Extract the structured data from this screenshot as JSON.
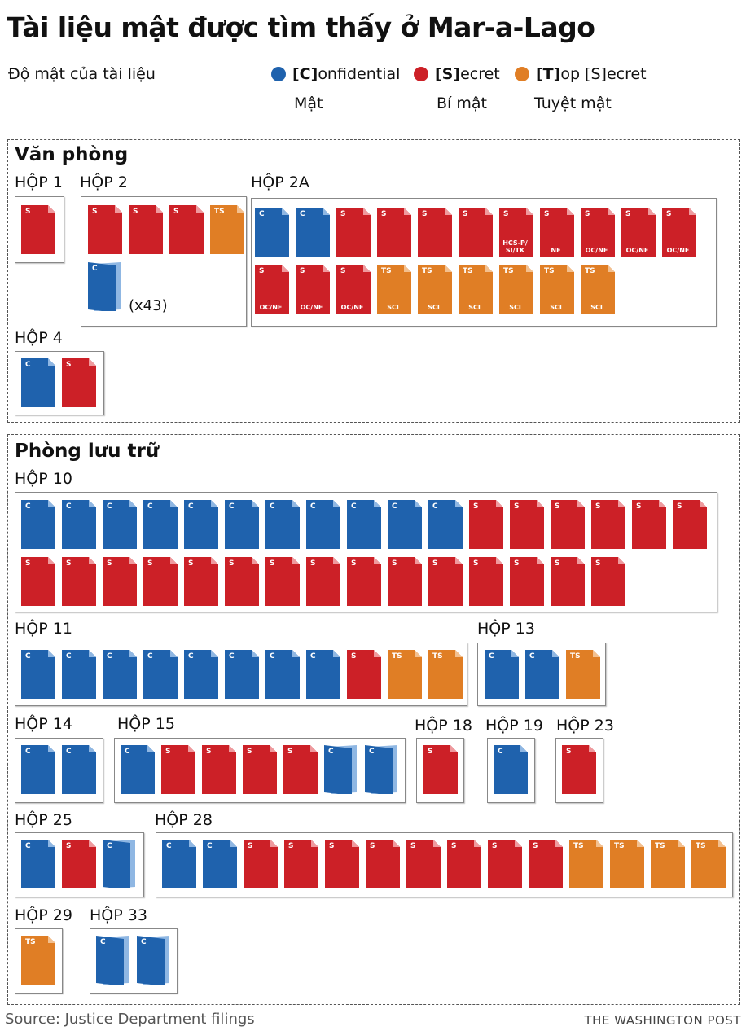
{
  "title": "Tài liệu mật được tìm thấy ở Mar-a-Lago",
  "legend": {
    "label": "Độ mật của tài liệu",
    "items": [
      {
        "key": "C",
        "code": "[C]",
        "rest": "onfidential",
        "sub": "Mật",
        "color": "#1f62ad"
      },
      {
        "key": "S",
        "code": "[S]",
        "rest": "ecret",
        "sub": "Bí mật",
        "color": "#cc2027"
      },
      {
        "key": "TS",
        "code": "[T]",
        "rest": "op [S]ecret",
        "sub": "Tuyệt mật",
        "color": "#e07e25"
      }
    ]
  },
  "colors": {
    "C": "#1f62ad",
    "S": "#cc2027",
    "TS": "#e07e25",
    "C_fold": "#8fb7e3",
    "S_fold": "#ef9a9e",
    "TS_fold": "#f3c08f"
  },
  "sections": [
    {
      "title": "Văn phòng"
    },
    {
      "title": "Phòng lưu trữ"
    }
  ],
  "chart_data": {
    "type": "table",
    "title": "Tài liệu mật được tìm thấy ở Mar-a-Lago",
    "categories": [
      "C",
      "S",
      "TS"
    ],
    "boxes": [
      {
        "section": "Văn phòng",
        "label": "HỘP 1",
        "docs": [
          {
            "c": "S"
          }
        ]
      },
      {
        "section": "Văn phòng",
        "label": "HỘP 2",
        "docs": [
          {
            "c": "S"
          },
          {
            "c": "S"
          },
          {
            "c": "S"
          },
          {
            "c": "TS"
          },
          {
            "c": "C",
            "folder": true,
            "count": "(x43)"
          }
        ]
      },
      {
        "section": "Văn phòng",
        "label": "HỘP 2A",
        "docs": [
          {
            "c": "C"
          },
          {
            "c": "C"
          },
          {
            "c": "S"
          },
          {
            "c": "S"
          },
          {
            "c": "S"
          },
          {
            "c": "S"
          },
          {
            "c": "S",
            "sub": "HCS-P/\nSI/TK"
          },
          {
            "c": "S",
            "sub": "NF"
          },
          {
            "c": "S",
            "sub": "OC/NF"
          },
          {
            "c": "S",
            "sub": "OC/NF"
          },
          {
            "c": "S",
            "sub": "OC/NF"
          },
          {
            "c": "S",
            "sub": "OC/NF"
          },
          {
            "c": "S",
            "sub": "OC/NF"
          },
          {
            "c": "S",
            "sub": "OC/NF"
          },
          {
            "c": "TS",
            "sub": "SCI"
          },
          {
            "c": "TS",
            "sub": "SCI"
          },
          {
            "c": "TS",
            "sub": "SCI"
          },
          {
            "c": "TS",
            "sub": "SCI"
          },
          {
            "c": "TS",
            "sub": "SCI"
          },
          {
            "c": "TS",
            "sub": "SCI"
          }
        ]
      },
      {
        "section": "Văn phòng",
        "label": "HỘP 4",
        "docs": [
          {
            "c": "C"
          },
          {
            "c": "S"
          }
        ]
      },
      {
        "section": "Phòng lưu trữ",
        "label": "HỘP 10",
        "docs": [
          {
            "c": "C"
          },
          {
            "c": "C"
          },
          {
            "c": "C"
          },
          {
            "c": "C"
          },
          {
            "c": "C"
          },
          {
            "c": "C"
          },
          {
            "c": "C"
          },
          {
            "c": "C"
          },
          {
            "c": "C"
          },
          {
            "c": "C"
          },
          {
            "c": "C"
          },
          {
            "c": "S"
          },
          {
            "c": "S"
          },
          {
            "c": "S"
          },
          {
            "c": "S"
          },
          {
            "c": "S"
          },
          {
            "c": "S"
          },
          {
            "c": "S"
          },
          {
            "c": "S"
          },
          {
            "c": "S"
          },
          {
            "c": "S"
          },
          {
            "c": "S"
          },
          {
            "c": "S"
          },
          {
            "c": "S"
          },
          {
            "c": "S"
          },
          {
            "c": "S"
          },
          {
            "c": "S"
          },
          {
            "c": "S"
          },
          {
            "c": "S"
          },
          {
            "c": "S"
          },
          {
            "c": "S"
          },
          {
            "c": "S"
          }
        ]
      },
      {
        "section": "Phòng lưu trữ",
        "label": "HỘP 11",
        "docs": [
          {
            "c": "C"
          },
          {
            "c": "C"
          },
          {
            "c": "C"
          },
          {
            "c": "C"
          },
          {
            "c": "C"
          },
          {
            "c": "C"
          },
          {
            "c": "C"
          },
          {
            "c": "C"
          },
          {
            "c": "S"
          },
          {
            "c": "TS"
          },
          {
            "c": "TS"
          }
        ]
      },
      {
        "section": "Phòng lưu trữ",
        "label": "HỘP 13",
        "docs": [
          {
            "c": "C"
          },
          {
            "c": "C"
          },
          {
            "c": "TS"
          }
        ]
      },
      {
        "section": "Phòng lưu trữ",
        "label": "HỘP 14",
        "docs": [
          {
            "c": "C"
          },
          {
            "c": "C"
          }
        ]
      },
      {
        "section": "Phòng lưu trữ",
        "label": "HỘP 15",
        "docs": [
          {
            "c": "C"
          },
          {
            "c": "S"
          },
          {
            "c": "S"
          },
          {
            "c": "S"
          },
          {
            "c": "S"
          },
          {
            "c": "C",
            "folder": true
          },
          {
            "c": "C",
            "folder": true
          }
        ]
      },
      {
        "section": "Phòng lưu trữ",
        "label": "HỘP 18",
        "docs": [
          {
            "c": "S"
          }
        ]
      },
      {
        "section": "Phòng lưu trữ",
        "label": "HỘP 19",
        "docs": [
          {
            "c": "C"
          }
        ]
      },
      {
        "section": "Phòng lưu trữ",
        "label": "HỘP 23",
        "docs": [
          {
            "c": "S"
          }
        ]
      },
      {
        "section": "Phòng lưu trữ",
        "label": "HỘP 25",
        "docs": [
          {
            "c": "C"
          },
          {
            "c": "S"
          },
          {
            "c": "C",
            "folder": true
          }
        ]
      },
      {
        "section": "Phòng lưu trữ",
        "label": "HỘP 28",
        "docs": [
          {
            "c": "C"
          },
          {
            "c": "C"
          },
          {
            "c": "S"
          },
          {
            "c": "S"
          },
          {
            "c": "S"
          },
          {
            "c": "S"
          },
          {
            "c": "S"
          },
          {
            "c": "S"
          },
          {
            "c": "S"
          },
          {
            "c": "S"
          },
          {
            "c": "TS"
          },
          {
            "c": "TS"
          },
          {
            "c": "TS"
          },
          {
            "c": "TS"
          }
        ]
      },
      {
        "section": "Phòng lưu trữ",
        "label": "HỘP 29",
        "docs": [
          {
            "c": "TS"
          }
        ]
      },
      {
        "section": "Phòng lưu trữ",
        "label": "HỘP 33",
        "docs": [
          {
            "c": "C",
            "folder": true
          },
          {
            "c": "C",
            "folder": true
          }
        ]
      }
    ]
  },
  "source": "Source: Justice Department filings",
  "credit": "THE WASHINGTON POST"
}
